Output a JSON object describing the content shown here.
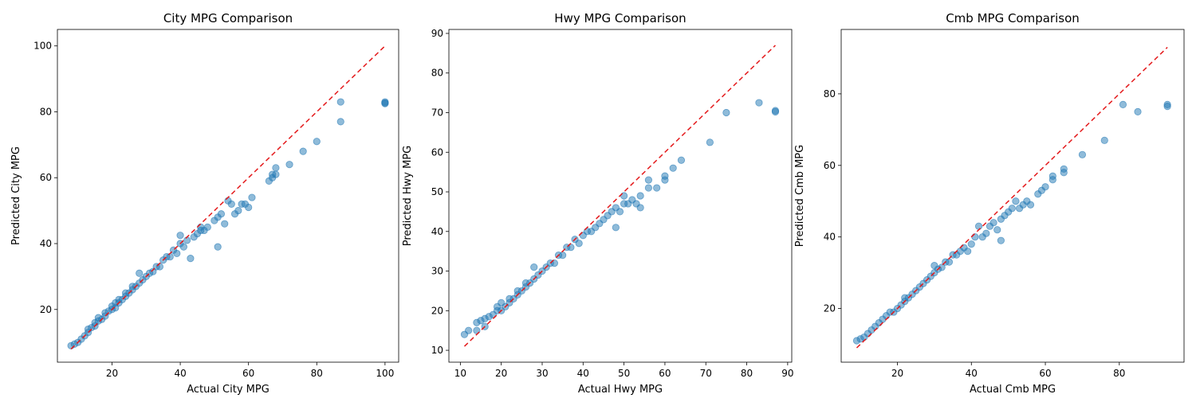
{
  "chart_data": [
    {
      "type": "scatter",
      "title": "City MPG Comparison",
      "xlabel": "Actual City MPG",
      "ylabel": "Predicted City MPG",
      "xlim": [
        4,
        104
      ],
      "ylim": [
        4,
        105
      ],
      "xticks": [
        20,
        40,
        60,
        80,
        100
      ],
      "yticks": [
        20,
        40,
        60,
        80,
        100
      ],
      "ideal_line": [
        8,
        100
      ],
      "grid": false,
      "points": [
        [
          8,
          9
        ],
        [
          9,
          9.5
        ],
        [
          10,
          10
        ],
        [
          11,
          11
        ],
        [
          12,
          12
        ],
        [
          13,
          13
        ],
        [
          13,
          14
        ],
        [
          14,
          14.5
        ],
        [
          15,
          15
        ],
        [
          15,
          16
        ],
        [
          16,
          16.5
        ],
        [
          16,
          17.5
        ],
        [
          17,
          17
        ],
        [
          18,
          18
        ],
        [
          18,
          19
        ],
        [
          19,
          19.5
        ],
        [
          20,
          20
        ],
        [
          20,
          21
        ],
        [
          21,
          20.5
        ],
        [
          21,
          22
        ],
        [
          22,
          22
        ],
        [
          22,
          23
        ],
        [
          23,
          23
        ],
        [
          24,
          24
        ],
        [
          24,
          25
        ],
        [
          25,
          25
        ],
        [
          26,
          26
        ],
        [
          26,
          27
        ],
        [
          27,
          27
        ],
        [
          28,
          28
        ],
        [
          28,
          31
        ],
        [
          29,
          29
        ],
        [
          30,
          30
        ],
        [
          31,
          31
        ],
        [
          32,
          31.5
        ],
        [
          33,
          33
        ],
        [
          34,
          33
        ],
        [
          35,
          35
        ],
        [
          36,
          36
        ],
        [
          37,
          36
        ],
        [
          38,
          38
        ],
        [
          39,
          37
        ],
        [
          40,
          40
        ],
        [
          40,
          42.5
        ],
        [
          41,
          39
        ],
        [
          42,
          41
        ],
        [
          43,
          35.5
        ],
        [
          44,
          42
        ],
        [
          45,
          43
        ],
        [
          46,
          44
        ],
        [
          46,
          45
        ],
        [
          47,
          44
        ],
        [
          48,
          45
        ],
        [
          50,
          47
        ],
        [
          51,
          48
        ],
        [
          51,
          39
        ],
        [
          52,
          49
        ],
        [
          53,
          46
        ],
        [
          54,
          53
        ],
        [
          55,
          52
        ],
        [
          56,
          49
        ],
        [
          57,
          50
        ],
        [
          58,
          52
        ],
        [
          59,
          52
        ],
        [
          60,
          51
        ],
        [
          61,
          54
        ],
        [
          66,
          59
        ],
        [
          67,
          60
        ],
        [
          67,
          61
        ],
        [
          68,
          63
        ],
        [
          68,
          61
        ],
        [
          72,
          64
        ],
        [
          76,
          68
        ],
        [
          80,
          71
        ],
        [
          87,
          77
        ],
        [
          87,
          83
        ],
        [
          100,
          82.5
        ],
        [
          100,
          83
        ],
        [
          100,
          82.7
        ]
      ]
    },
    {
      "type": "scatter",
      "title": "Hwy MPG Comparison",
      "xlabel": "Actual Hwy MPG",
      "ylabel": "Predicted Hwy MPG",
      "xlim": [
        7.2,
        91
      ],
      "ylim": [
        7,
        91
      ],
      "xticks": [
        10,
        20,
        30,
        40,
        50,
        60,
        70,
        80,
        90
      ],
      "yticks": [
        10,
        20,
        30,
        40,
        50,
        60,
        70,
        80,
        90
      ],
      "ideal_line": [
        11,
        87
      ],
      "grid": false,
      "points": [
        [
          11,
          14
        ],
        [
          12,
          15
        ],
        [
          14,
          15
        ],
        [
          14,
          17
        ],
        [
          15,
          17.5
        ],
        [
          16,
          16
        ],
        [
          16,
          18
        ],
        [
          17,
          18.5
        ],
        [
          18,
          19
        ],
        [
          19,
          20
        ],
        [
          19,
          21
        ],
        [
          20,
          20
        ],
        [
          20,
          22
        ],
        [
          21,
          21
        ],
        [
          22,
          22
        ],
        [
          22,
          23
        ],
        [
          23,
          23
        ],
        [
          24,
          24
        ],
        [
          24,
          25
        ],
        [
          25,
          25
        ],
        [
          26,
          26
        ],
        [
          26,
          27
        ],
        [
          27,
          27
        ],
        [
          28,
          28
        ],
        [
          28,
          31
        ],
        [
          29,
          29
        ],
        [
          30,
          30
        ],
        [
          31,
          31
        ],
        [
          32,
          32
        ],
        [
          33,
          32
        ],
        [
          34,
          34
        ],
        [
          35,
          34
        ],
        [
          36,
          36
        ],
        [
          37,
          36
        ],
        [
          38,
          38
        ],
        [
          39,
          37
        ],
        [
          40,
          39
        ],
        [
          41,
          40
        ],
        [
          42,
          40
        ],
        [
          43,
          41
        ],
        [
          44,
          42
        ],
        [
          45,
          43
        ],
        [
          46,
          44
        ],
        [
          47,
          45
        ],
        [
          48,
          41
        ],
        [
          48,
          46
        ],
        [
          49,
          45
        ],
        [
          50,
          47
        ],
        [
          50,
          49
        ],
        [
          51,
          47
        ],
        [
          52,
          48
        ],
        [
          53,
          47
        ],
        [
          54,
          46
        ],
        [
          54,
          49
        ],
        [
          56,
          53
        ],
        [
          56,
          51
        ],
        [
          58,
          51
        ],
        [
          60,
          53
        ],
        [
          60,
          54
        ],
        [
          62,
          56
        ],
        [
          64,
          58
        ],
        [
          71,
          62.5
        ],
        [
          75,
          70
        ],
        [
          83,
          72.5
        ],
        [
          87,
          70.5
        ],
        [
          87,
          70.2
        ]
      ]
    },
    {
      "type": "scatter",
      "title": "Cmb MPG Comparison",
      "xlabel": "Actual Cmb MPG",
      "ylabel": "Predicted Cmb MPG",
      "xlim": [
        4.8,
        97.5
      ],
      "ylim": [
        5,
        98
      ],
      "xticks": [
        20,
        40,
        60,
        80
      ],
      "yticks": [
        20,
        40,
        60,
        80
      ],
      "ideal_line": [
        9,
        93
      ],
      "grid": false,
      "points": [
        [
          9,
          11
        ],
        [
          10,
          11.5
        ],
        [
          11,
          12
        ],
        [
          12,
          13
        ],
        [
          13,
          14
        ],
        [
          14,
          15
        ],
        [
          15,
          16
        ],
        [
          16,
          17
        ],
        [
          17,
          18
        ],
        [
          18,
          19
        ],
        [
          19,
          19
        ],
        [
          20,
          20
        ],
        [
          21,
          21
        ],
        [
          22,
          22
        ],
        [
          22,
          23
        ],
        [
          23,
          23
        ],
        [
          24,
          24
        ],
        [
          25,
          25
        ],
        [
          26,
          26
        ],
        [
          27,
          27
        ],
        [
          28,
          28
        ],
        [
          29,
          29
        ],
        [
          30,
          30
        ],
        [
          30,
          32
        ],
        [
          31,
          31
        ],
        [
          32,
          31.5
        ],
        [
          33,
          33
        ],
        [
          34,
          33
        ],
        [
          35,
          35
        ],
        [
          36,
          35
        ],
        [
          37,
          36
        ],
        [
          38,
          37
        ],
        [
          39,
          36
        ],
        [
          40,
          38
        ],
        [
          41,
          40
        ],
        [
          42,
          43
        ],
        [
          43,
          40
        ],
        [
          44,
          41
        ],
        [
          45,
          43
        ],
        [
          46,
          44
        ],
        [
          47,
          42
        ],
        [
          48,
          39
        ],
        [
          48,
          45
        ],
        [
          49,
          46
        ],
        [
          50,
          47
        ],
        [
          51,
          48
        ],
        [
          52,
          50
        ],
        [
          53,
          48
        ],
        [
          54,
          49
        ],
        [
          55,
          50
        ],
        [
          56,
          49
        ],
        [
          58,
          52
        ],
        [
          59,
          53
        ],
        [
          60,
          54
        ],
        [
          62,
          56
        ],
        [
          62,
          57
        ],
        [
          65,
          59
        ],
        [
          65,
          58
        ],
        [
          70,
          63
        ],
        [
          76,
          67
        ],
        [
          81,
          77
        ],
        [
          85,
          75
        ],
        [
          93,
          77
        ],
        [
          93,
          76.5
        ]
      ]
    }
  ]
}
